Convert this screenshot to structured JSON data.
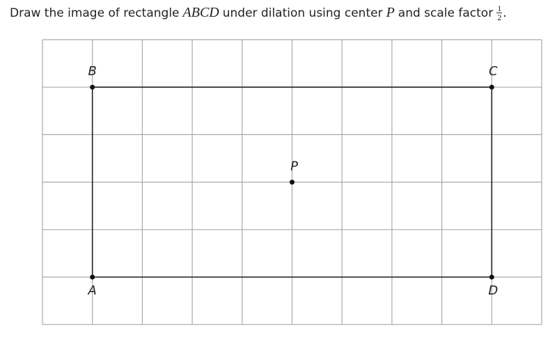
{
  "prompt": {
    "before": "Draw the image of rectangle",
    "rect_name": "ABCD",
    "middle": "under dilation using center",
    "center_name": "P",
    "after": "and scale factor",
    "fraction": {
      "numerator": "1",
      "denominator": "2"
    },
    "end": "."
  },
  "points": [
    {
      "label": "B"
    },
    {
      "label": "C"
    },
    {
      "label": "A"
    },
    {
      "label": "D"
    },
    {
      "label": "P"
    }
  ]
}
